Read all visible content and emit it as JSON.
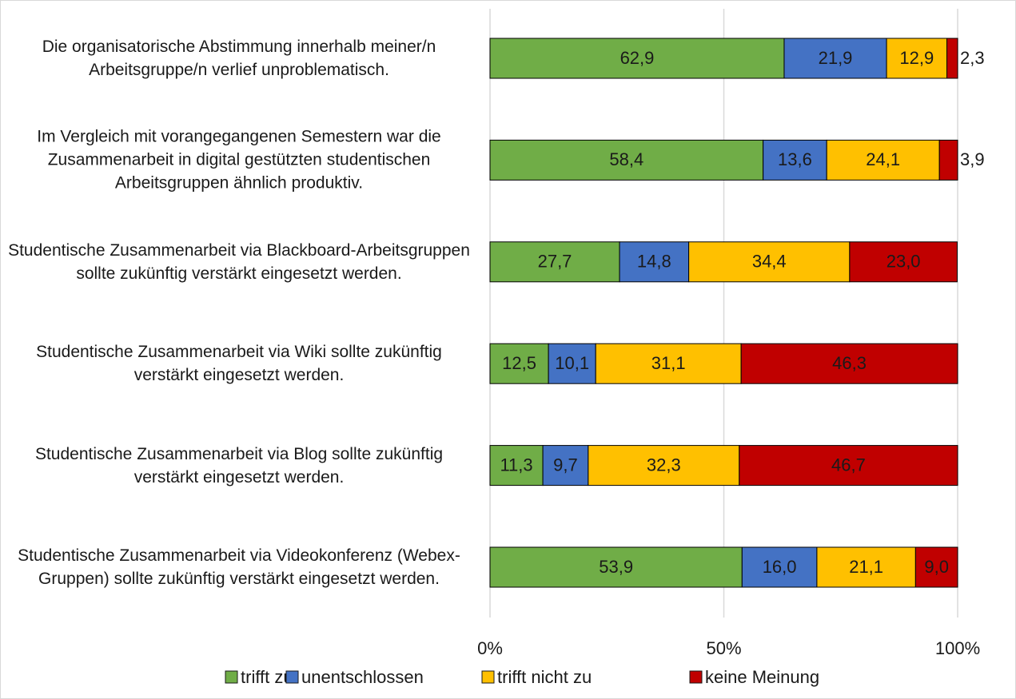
{
  "chart_data": {
    "type": "stacked_barh",
    "categories": [
      "Die organisatorische Abstimmung innerhalb meiner/n Arbeitsgruppe/n verlief unproblematisch.",
      "Im Vergleich mit vorangegangenen Semestern war die Zusammenarbeit in digital gestützten studentischen Arbeitsgruppen ähnlich produktiv.",
      "Studentische Zusammenarbeit via Blackboard-Arbeitsgruppen sollte zukünftig verstärkt eingesetzt werden.",
      "Studentische Zusammenarbeit via Wiki sollte zukünftig verstärkt eingesetzt werden.",
      "Studentische Zusammenarbeit via Blog sollte zukünftig verstärkt eingesetzt werden.",
      "Studentische Zusammenarbeit via Videokonferenz (Webex-Gruppen) sollte zukünftig verstärkt eingesetzt werden."
    ],
    "series": [
      {
        "name": "trifft zu",
        "color": "#70ad47",
        "values": [
          62.9,
          58.4,
          27.7,
          12.5,
          11.3,
          53.9
        ],
        "value_labels": [
          "62,9",
          "58,4",
          "27,7",
          "12,5",
          "11,3",
          "53,9"
        ]
      },
      {
        "name": "unentschlossen",
        "color": "#4472c4",
        "values": [
          21.9,
          13.6,
          14.8,
          10.1,
          9.7,
          16.0
        ],
        "value_labels": [
          "21,9",
          "13,6",
          "14,8",
          "10,1",
          "9,7",
          "16,0"
        ]
      },
      {
        "name": "trifft nicht zu",
        "color": "#ffc000",
        "values": [
          12.9,
          24.1,
          34.4,
          31.1,
          32.3,
          21.1
        ],
        "value_labels": [
          "12,9",
          "24,1",
          "34,4",
          "31,1",
          "32,3",
          "21,1"
        ]
      },
      {
        "name": "keine Meinung",
        "color": "#c00000",
        "values": [
          2.3,
          3.9,
          23.0,
          46.3,
          46.7,
          9.0
        ],
        "value_labels": [
          "2,3",
          "3,9",
          "23,0",
          "46,3",
          "46,7",
          "9,0"
        ]
      }
    ],
    "xlim": [
      0,
      100
    ],
    "xticks": [
      {
        "value": 0,
        "label": "0%"
      },
      {
        "value": 50,
        "label": "50%"
      },
      {
        "value": 100,
        "label": "100%"
      }
    ],
    "grid": true,
    "legend": "bottom"
  }
}
